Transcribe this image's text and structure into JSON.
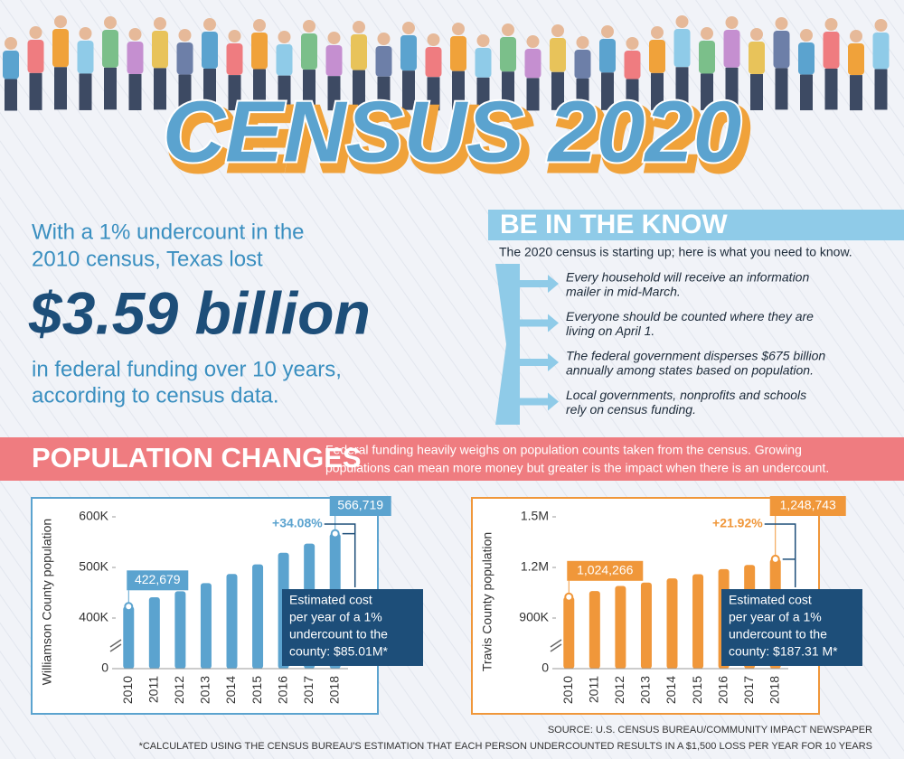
{
  "header": {
    "title": "CENSUS 2020"
  },
  "intro": {
    "lead": [
      "With a 1% undercount in the",
      "2010 census, Texas lost"
    ],
    "amount": "$3.59 billion",
    "tail": [
      "in federal funding over 10 years,",
      "according to census data."
    ]
  },
  "know": {
    "title": "BE IN THE KNOW",
    "subtitle": "The 2020 census is starting up; here is what you need to know.",
    "items": [
      [
        "Every household will receive an information",
        "mailer in mid-March."
      ],
      [
        "Everyone should be counted where they are",
        "living on April 1."
      ],
      [
        "The federal government disperses $675 billion",
        "annually among states based on population."
      ],
      [
        "Local governments, nonprofits and schools",
        "rely on census funding."
      ]
    ]
  },
  "section": {
    "title": "POPULATION CHANGES",
    "text": [
      "Federal funding heavily weighs on population counts taken from the census. Growing",
      "populations can mean more money but greater is the impact when there is an undercount."
    ]
  },
  "chart_data": [
    {
      "type": "bar",
      "y_label": "Williamson County population",
      "categories": [
        "2010",
        "2011",
        "2012",
        "2013",
        "2014",
        "2015",
        "2016",
        "2017",
        "2018"
      ],
      "values": [
        422679,
        441000,
        453000,
        469000,
        487000,
        506000,
        529000,
        547000,
        566719
      ],
      "value_labels": [
        "422,679",
        null,
        null,
        null,
        null,
        null,
        null,
        null,
        "566,719"
      ],
      "color": "#5ba3cf",
      "ylim": [
        0,
        600000
      ],
      "yticks": [
        0,
        {
          "value": 400000,
          "label": "400K"
        },
        {
          "value": 500000,
          "label": "500K"
        },
        {
          "value": 600000,
          "label": "600K"
        }
      ],
      "axis_break": true,
      "change": "+34.08%",
      "callout": [
        "Estimated cost",
        "per year of a 1%",
        "undercount to the",
        "county: $85.01M*"
      ]
    },
    {
      "type": "bar",
      "y_label": "Travis County population",
      "categories": [
        "2010",
        "2011",
        "2012",
        "2013",
        "2014",
        "2015",
        "2016",
        "2017",
        "2018"
      ],
      "values": [
        1024266,
        1060000,
        1090000,
        1110000,
        1135000,
        1160000,
        1190000,
        1215000,
        1248743
      ],
      "value_labels": [
        "1,024,266",
        null,
        null,
        null,
        null,
        null,
        null,
        null,
        "1,248,743"
      ],
      "color": "#f0973a",
      "ylim": [
        0,
        1500000
      ],
      "yticks": [
        0,
        {
          "value": 900000,
          "label": "900K"
        },
        {
          "value": 1200000,
          "label": "1.2M"
        },
        {
          "value": 1500000,
          "label": "1.5M"
        }
      ],
      "axis_break": true,
      "change": "+21.92%",
      "callout": [
        "Estimated cost",
        "per year of a 1%",
        "undercount to the",
        "county: $187.31 M*"
      ]
    }
  ],
  "footer": {
    "source": "SOURCE: U.S. CENSUS BUREAU/COMMUNITY IMPACT NEWSPAPER",
    "note": "*CALCULATED USING THE CENSUS BUREAU'S ESTIMATION THAT EACH PERSON UNDERCOUNTED RESULTS IN A $1,500 LOSS PER YEAR FOR 10 YEARS"
  }
}
